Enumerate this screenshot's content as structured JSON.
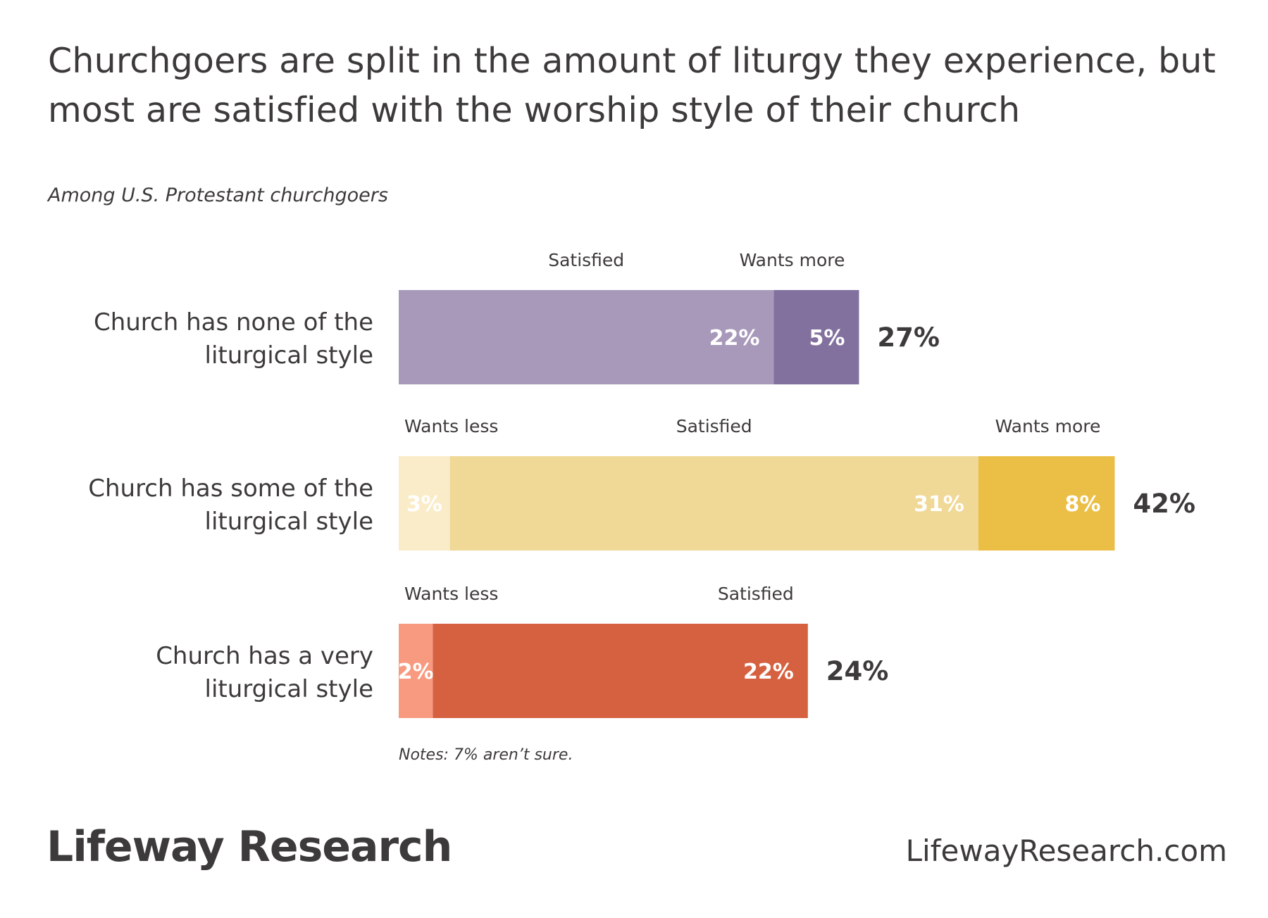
{
  "header": {
    "title": "Churchgoers are split in the amount of liturgy they experience, but most are satisfied with the worship style of their church",
    "subtitle": "Among U.S. Protestant churchgoers"
  },
  "chart_data": {
    "type": "bar",
    "orientation": "horizontal",
    "stacked": true,
    "title": "Churchgoers are split in the amount of liturgy they experience, but most are satisfied with the worship style of their church",
    "subtitle": "Among U.S. Protestant churchgoers",
    "unit": "%",
    "grid": false,
    "legend": "none",
    "categories": [
      "Church has none of the liturgical style",
      "Church has some of the liturgical style",
      "Church has a very liturgical style"
    ],
    "rows": [
      {
        "label_lines": [
          "Church has none of the",
          "liturgical style"
        ],
        "total": 27,
        "total_label": "27%",
        "segments": [
          {
            "name": "Satisfied",
            "value": 22,
            "label": "22%",
            "color": "#a899ba",
            "text_color": "#ffffff"
          },
          {
            "name": "Wants more",
            "value": 5,
            "label": "5%",
            "color": "#82719e",
            "text_color": "#ffffff"
          }
        ]
      },
      {
        "label_lines": [
          "Church has some of the",
          "liturgical style"
        ],
        "total": 42,
        "total_label": "42%",
        "segments": [
          {
            "name": "Wants less",
            "value": 3,
            "label": "3%",
            "color": "#faecc8",
            "text_color": "#ffffff"
          },
          {
            "name": "Satisfied",
            "value": 31,
            "label": "31%",
            "color": "#f0d896",
            "text_color": "#ffffff"
          },
          {
            "name": "Wants more",
            "value": 8,
            "label": "8%",
            "color": "#ebbe45",
            "text_color": "#ffffff"
          }
        ]
      },
      {
        "label_lines": [
          "Church has a very",
          "liturgical style"
        ],
        "total": 24,
        "total_label": "24%",
        "segments": [
          {
            "name": "Wants less",
            "value": 2,
            "label": "2%",
            "color": "#f89a80",
            "text_color": "#ffffff"
          },
          {
            "name": "Satisfied",
            "value": 22,
            "label": "22%",
            "color": "#d66140",
            "text_color": "#ffffff"
          }
        ]
      }
    ]
  },
  "notes": "Notes: 7% aren’t sure.",
  "footer": {
    "logo_text": "Lifeway Research",
    "website": "LifewayResearch.com"
  }
}
